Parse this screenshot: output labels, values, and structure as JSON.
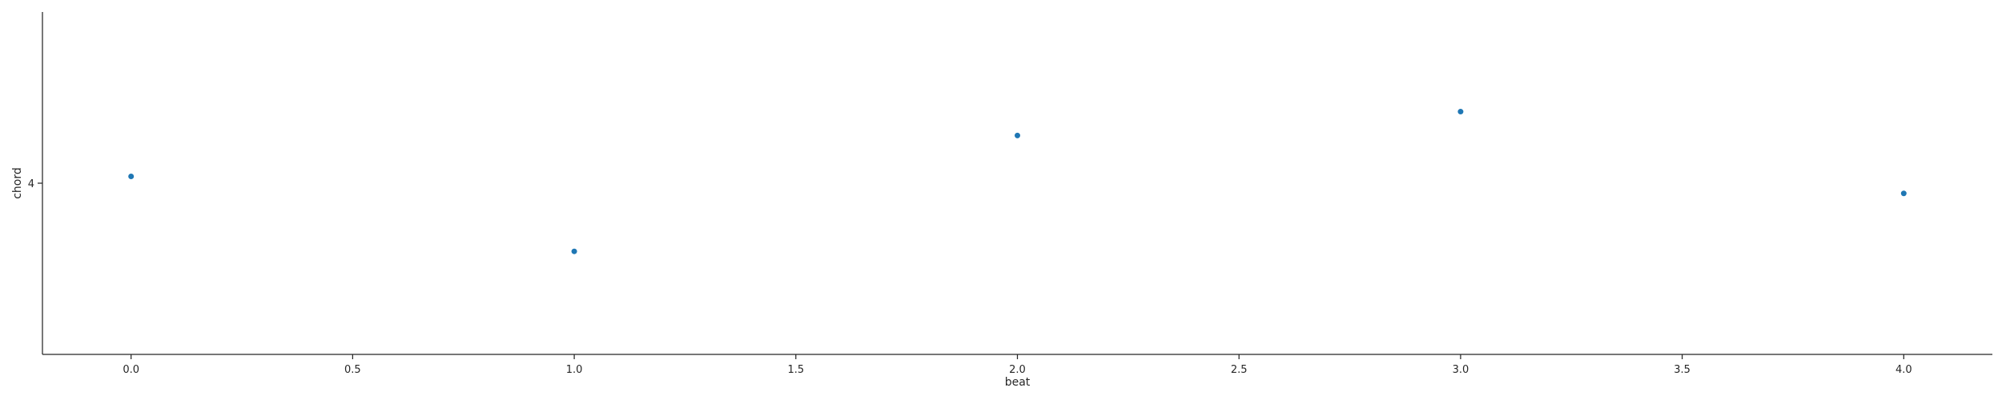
{
  "chart_data": {
    "type": "scatter",
    "title": "",
    "xlabel": "beat",
    "ylabel": "chord",
    "xlim": [
      -0.2,
      4.2
    ],
    "x_ticks": [
      0.0,
      0.5,
      1.0,
      1.5,
      2.0,
      2.5,
      3.0,
      3.5,
      4.0
    ],
    "x_tick_labels": [
      "0.0",
      "0.5",
      "1.0",
      "1.5",
      "2.0",
      "2.5",
      "3.0",
      "3.5",
      "4.0"
    ],
    "y_category": "4",
    "y_tick_labels": [
      "4"
    ],
    "points": [
      {
        "x": 0.0,
        "y": "4",
        "jitter": 0.02
      },
      {
        "x": 1.0,
        "y": "4",
        "jitter": -0.2
      },
      {
        "x": 2.0,
        "y": "4",
        "jitter": 0.14
      },
      {
        "x": 3.0,
        "y": "4",
        "jitter": 0.21
      },
      {
        "x": 4.0,
        "y": "4",
        "jitter": -0.03
      }
    ],
    "point_color": "#1f77b4",
    "grid": false,
    "legend": "none"
  }
}
